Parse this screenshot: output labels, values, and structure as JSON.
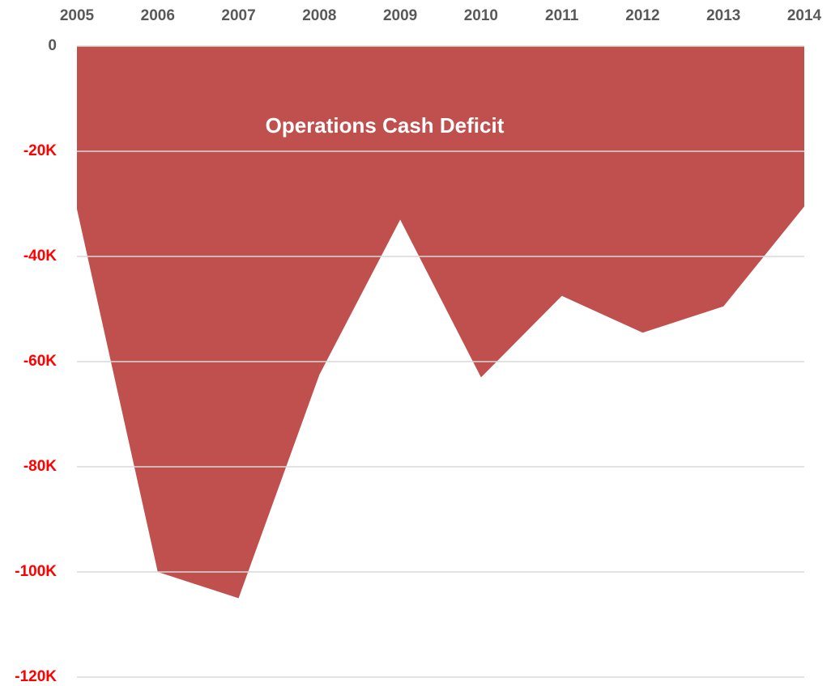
{
  "chart_data": {
    "type": "area",
    "annotation": "Operations Cash Deficit",
    "categories": [
      "2005",
      "2006",
      "2007",
      "2008",
      "2009",
      "2010",
      "2011",
      "2012",
      "2013",
      "2014"
    ],
    "values": [
      -31000,
      -100000,
      -105000,
      -62500,
      -33000,
      -63000,
      -47500,
      -54500,
      -49500,
      -30500
    ],
    "color": "#c0504d",
    "ylim": [
      -120000,
      0
    ],
    "yticks": [
      0,
      {
        "value": -20000,
        "label": "-20K"
      },
      {
        "value": -40000,
        "label": "-40K"
      },
      {
        "value": -60000,
        "label": "-60K"
      },
      {
        "value": -80000,
        "label": "-80K"
      },
      {
        "value": -100000,
        "label": "-100K"
      },
      {
        "value": -120000,
        "label": "-120K"
      }
    ],
    "tick_color": "#595959",
    "negative_tick_color": "#ff0000",
    "grid": true,
    "x_axis_position": "top"
  }
}
